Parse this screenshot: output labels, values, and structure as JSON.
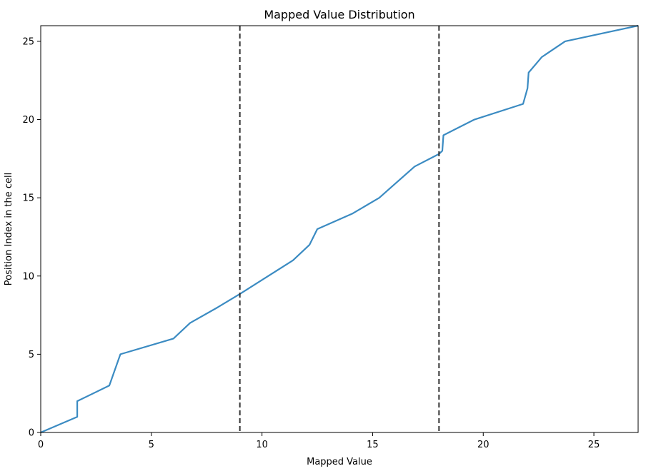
{
  "chart_data": {
    "type": "line",
    "title": "Mapped Value Distribution",
    "xlabel": "Mapped Value",
    "ylabel": "Position Index in the cell",
    "xlim": [
      0,
      27
    ],
    "ylim": [
      0,
      26
    ],
    "xticks": [
      0,
      5,
      10,
      15,
      20,
      25
    ],
    "yticks": [
      0,
      5,
      10,
      15,
      20,
      25
    ],
    "grid": false,
    "series": [
      {
        "color": "#3b8bc2",
        "x": [
          0,
          1.65,
          1.65,
          3.1,
          3.6,
          6.0,
          6.75,
          8.0,
          9.0,
          11.4,
          12.15,
          12.5,
          14.1,
          15.3,
          16.1,
          16.9,
          18.0,
          18.15,
          18.2,
          19.6,
          21.8,
          22.0,
          22.05,
          22.65,
          23.7,
          27.0
        ],
        "y": [
          0,
          1,
          2,
          3,
          5,
          6,
          7,
          8,
          8.85,
          11,
          12,
          13,
          14,
          15,
          16,
          17,
          17.8,
          18,
          19,
          20,
          21,
          22,
          23,
          24,
          25,
          26
        ]
      }
    ],
    "vlines": [
      {
        "x": 9,
        "color": "#333333",
        "style": "dashed"
      },
      {
        "x": 18,
        "color": "#333333",
        "style": "dashed"
      }
    ]
  }
}
